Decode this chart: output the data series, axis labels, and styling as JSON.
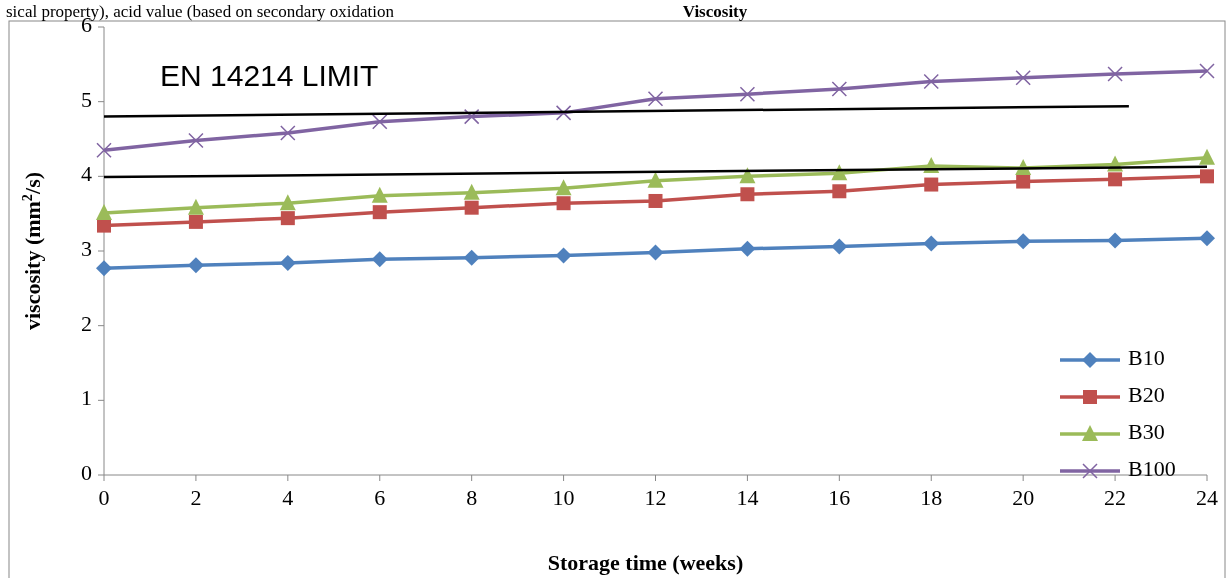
{
  "chart_data": {
    "type": "line",
    "title": "Viscosity",
    "xlabel": "Storage time (weeks)",
    "ylabel": "viscosity (mm$^{2}$/s)",
    "annotations": [
      "sical property), acid value (based on secondary oxidation",
      "EN 14214 LIMIT"
    ],
    "x": [
      0,
      2,
      4,
      6,
      8,
      10,
      12,
      14,
      16,
      18,
      20,
      22,
      24
    ],
    "series": [
      {
        "name": "B10",
        "color": "#4f81bd",
        "marker": "diamond",
        "values": [
          2.77,
          2.81,
          2.84,
          2.89,
          2.91,
          2.94,
          2.98,
          3.03,
          3.06,
          3.1,
          3.13,
          3.14,
          3.17
        ]
      },
      {
        "name": "B20",
        "color": "#c0504d",
        "marker": "square",
        "values": [
          3.34,
          3.39,
          3.44,
          3.52,
          3.58,
          3.64,
          3.67,
          3.76,
          3.8,
          3.89,
          3.93,
          3.96,
          4.0
        ]
      },
      {
        "name": "B30",
        "color": "#9bbb59",
        "marker": "triangle",
        "values": [
          3.51,
          3.58,
          3.64,
          3.74,
          3.78,
          3.84,
          3.94,
          4.0,
          4.04,
          4.14,
          4.11,
          4.16,
          4.25
        ]
      },
      {
        "name": "B100",
        "color": "#8064a2",
        "marker": "cross",
        "values": [
          4.35,
          4.48,
          4.58,
          4.73,
          4.8,
          4.85,
          5.04,
          5.1,
          5.17,
          5.27,
          5.32,
          5.37,
          5.41
        ]
      },
      {
        "color": "#000000",
        "marker": "none",
        "x": [
          0,
          22.3
        ],
        "values": [
          4.8,
          4.94
        ]
      },
      {
        "color": "#000000",
        "marker": "none",
        "x": [
          0,
          24
        ],
        "values": [
          3.99,
          4.13
        ]
      }
    ],
    "xlim": [
      0,
      24
    ],
    "xticks": [
      0,
      2,
      4,
      6,
      8,
      10,
      12,
      14,
      16,
      18,
      20,
      22,
      24
    ],
    "ylim": [
      0,
      6
    ],
    "yticks": [
      0,
      1,
      2,
      3,
      4,
      5,
      6
    ],
    "grid": false,
    "legend": "bottom right"
  }
}
